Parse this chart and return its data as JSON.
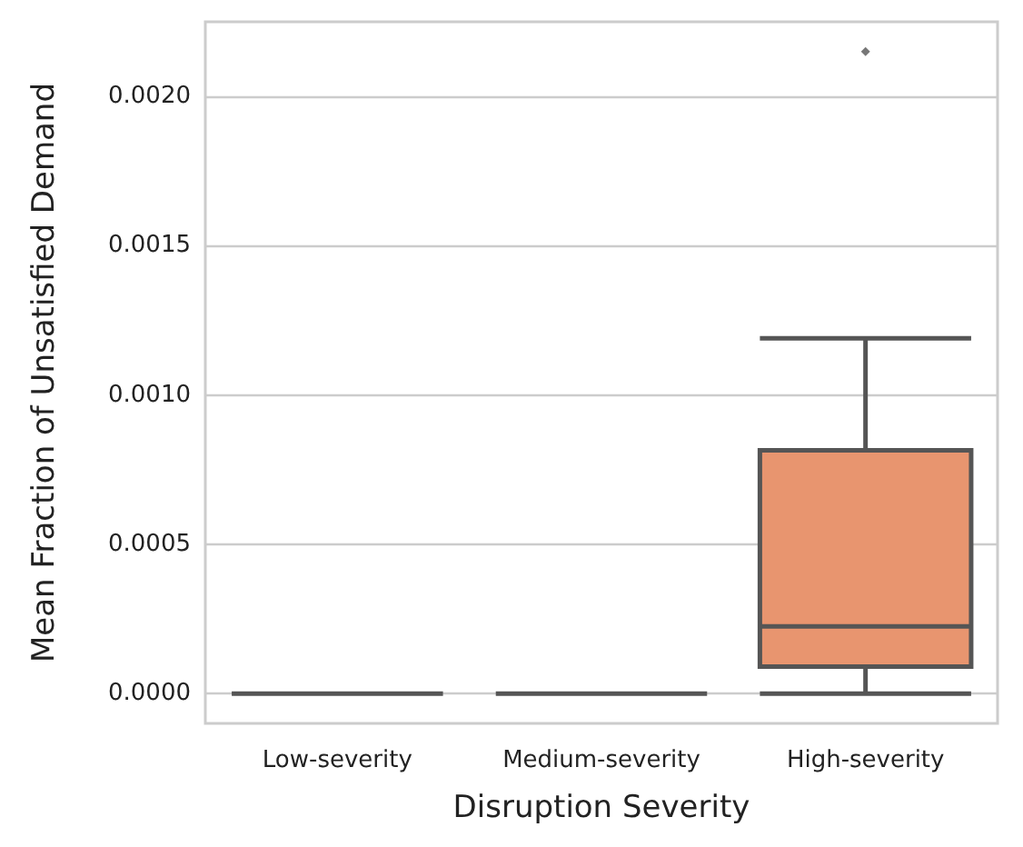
{
  "chart_data": {
    "type": "box",
    "xlabel": "Disruption Severity",
    "ylabel": "Mean Fraction of Unsatisfied Demand",
    "categories": [
      "Low-severity",
      "Medium-severity",
      "High-severity"
    ],
    "boxes": [
      {
        "low": 0,
        "q1": 0,
        "median": 0,
        "q3": 0,
        "high": 0
      },
      {
        "low": 0,
        "q1": 0,
        "median": 0,
        "q3": 0,
        "high": 0
      },
      {
        "low": 0,
        "q1": 9e-05,
        "median": 0.000225,
        "q3": 0.000815,
        "high": 0.00119,
        "outliers": [
          0.00215
        ]
      }
    ],
    "colors": [
      "#555555",
      "#555555",
      "#e8956f"
    ],
    "ylim": [
      -0.0001,
      0.00225
    ],
    "yticks": [
      {
        "value": 0,
        "label": "0.0000"
      },
      {
        "value": 0.0005,
        "label": "0.0005"
      },
      {
        "value": 0.001,
        "label": "0.0010"
      },
      {
        "value": 0.0015,
        "label": "0.0015"
      },
      {
        "value": 0.002,
        "label": "0.0020"
      }
    ],
    "grid": "y"
  }
}
